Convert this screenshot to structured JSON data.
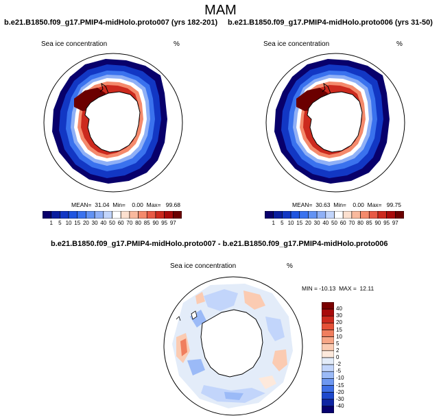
{
  "season": "MAM",
  "panels": [
    {
      "title": "b.e21.B1850.f09_g17.PMIP4-midHolo.proto007 (yrs 182-201)",
      "variable": "Sea ice concentration",
      "units": "%",
      "stats": "MEAN=  31.04  Min=    0.00  Max=   99.68"
    },
    {
      "title": "b.e21.B1850.f09_g17.PMIP4-midHolo.proto006 (yrs 31-50)",
      "variable": "Sea ice concentration",
      "units": "%",
      "stats": "MEAN=  30.63  Min=    0.00  Max=   99.75"
    }
  ],
  "abs_colorbar": {
    "labels": [
      "1",
      "5",
      "10",
      "15",
      "20",
      "30",
      "40",
      "50",
      "60",
      "70",
      "80",
      "85",
      "90",
      "95",
      "97"
    ],
    "colors": [
      "#08006b",
      "#0a1e9e",
      "#1237c4",
      "#1f55e0",
      "#3a72ee",
      "#6292f3",
      "#8fb0f6",
      "#c2d5fb",
      "#ffffff",
      "#fce0cf",
      "#f9b99d",
      "#f48a6c",
      "#e85a45",
      "#cc2a1e",
      "#a80b0b",
      "#6b0000"
    ]
  },
  "diff_panel": {
    "title": "b.e21.B1850.f09_g17.PMIP4-midHolo.proto007 - b.e21.B1850.f09_g17.PMIP4-midHolo.proto006",
    "variable": "Sea ice concentration",
    "units": "%",
    "stats": "MIN = -10.13  MAX =  12.11"
  },
  "diff_colorbar": {
    "labels": [
      "40",
      "30",
      "20",
      "15",
      "10",
      "5",
      "2",
      "0",
      "-2",
      "-5",
      "-10",
      "-15",
      "-20",
      "-30",
      "-40"
    ],
    "colors": [
      "#7a0000",
      "#a80b0b",
      "#cc2a1e",
      "#e55137",
      "#f07e5e",
      "#f7a686",
      "#fbcbb2",
      "#fde9dc",
      "#e3ecf9",
      "#c2d5fb",
      "#9bbaf7",
      "#6e98f1",
      "#3e6fe6",
      "#1d48cc",
      "#0e25a3",
      "#06006e"
    ]
  }
}
